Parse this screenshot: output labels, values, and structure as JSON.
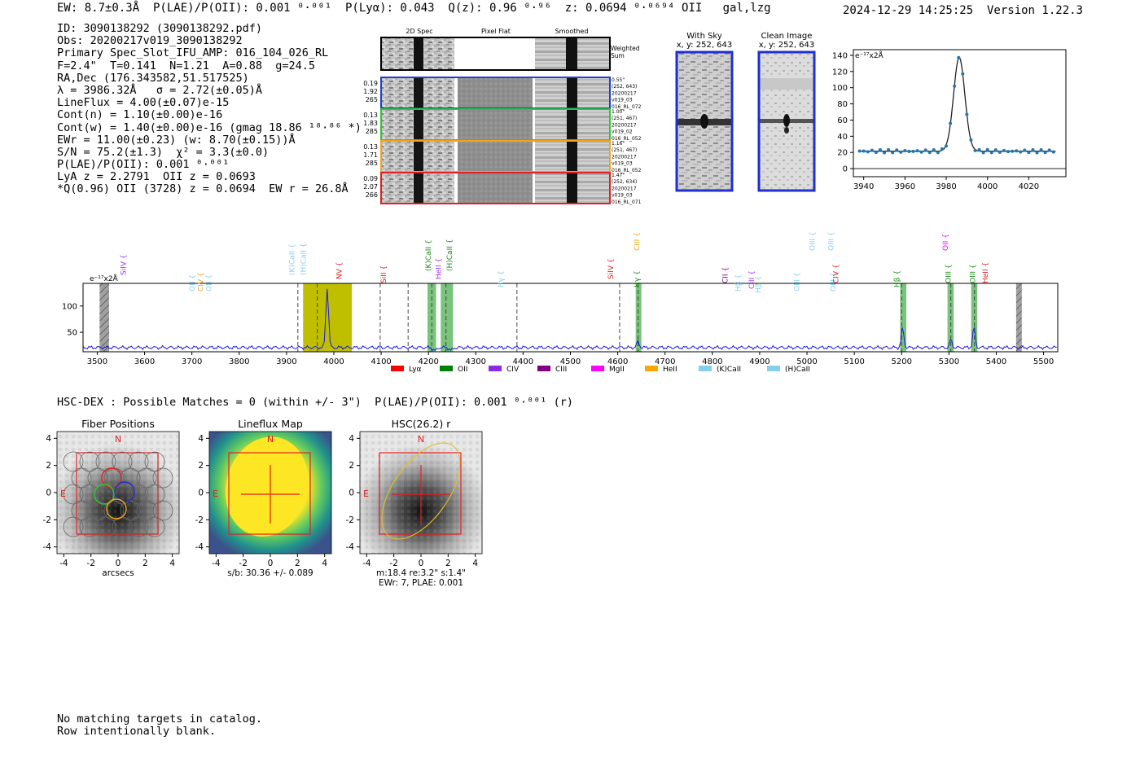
{
  "header": {
    "left": "EW: 8.7±0.3Å  P(LAE)/P(OII): 0.001 ⁰·⁰⁰¹  P(Lyα): 0.043  Q(z): 0.96 ⁰·⁹⁶  z: 0.0694 ⁰·⁰⁶⁹⁴ OII   gal,lzg",
    "right": "2024-12-29 14:25:25  Version 1.22.3"
  },
  "summary": [
    "ID: 3090138292 (3090138292.pdf)",
    "Obs: 20200217v019_3090138292",
    "Primary Spec_Slot_IFU_AMP: 016_104_026_RL",
    "F=2.4\"  T=0.141  N=1.21  A=0.88  g=24.5",
    "RA,Dec (176.343582,51.517525)",
    "λ = 3986.32Å   σ = 2.72(±0.05)Å",
    "LineFlux = 4.00(±0.07)e-15",
    "Cont(n) = 1.10(±0.00)e-16",
    "Cont(w) = 1.40(±0.00)e-16 (gmag 18.86 ¹⁸·⁸⁶ *)",
    "EWr = 11.00(±0.23) (w: 8.70(±0.15))Å",
    "S/N = 75.2(±1.3)  χ² = 3.3(±0.0)",
    "P(LAE)/P(OII): 0.001 ⁰·⁰⁰¹",
    "LyA z = 2.2791  OII z = 0.0693",
    "*Q(0.96) OII (3728) z = 0.0694  EW r = 26.8Å"
  ],
  "cutouts": {
    "col_headers": [
      "2D Spec",
      "Pixel Flat",
      "Smoothed"
    ],
    "weighted_label": [
      "Weighted",
      "Sum"
    ],
    "rows": [
      {
        "left": [
          "0.19",
          "1.92",
          "265"
        ],
        "right": [
          "0.55\"",
          "(252, 643)",
          "20200217",
          "v019_03",
          "016_RL_072"
        ],
        "color": "#1f3fd0"
      },
      {
        "left": [
          "0.13",
          "1.83",
          "285"
        ],
        "right": [
          "1.00\"",
          "(251, 467)",
          "20200217",
          "v019_02",
          "016_RL_052"
        ],
        "color": "#2ec82e"
      },
      {
        "left": [
          "0.13",
          "1.71",
          "285"
        ],
        "right": [
          "1.16\"",
          "(251, 467)",
          "20200217",
          "v019_03",
          "016_RL_052"
        ],
        "color": "#f2a51a"
      },
      {
        "left": [
          "0.09",
          "2.07",
          "266"
        ],
        "right": [
          "1.47\"",
          "(252, 634)",
          "20200217",
          "v019_03",
          "016_RL_071"
        ],
        "color": "#e02020"
      }
    ]
  },
  "sky_panels": [
    {
      "title": "With Sky",
      "coord": "x, y: 252, 643"
    },
    {
      "title": "Clean Image",
      "coord": "x, y: 252, 643"
    }
  ],
  "zoom_chart": {
    "unit_label": "e⁻¹⁷x2Å",
    "x_ticks": [
      "3940",
      "3960",
      "3980",
      "4000",
      "4020"
    ],
    "y_ticks": [
      "0",
      "20",
      "40",
      "60",
      "80",
      "100",
      "120",
      "140"
    ]
  },
  "full_spectrum": {
    "unit_label": "e⁻¹⁷x2Å",
    "x_ticks": [
      "3500",
      "3600",
      "3700",
      "3800",
      "3900",
      "4000",
      "4100",
      "4200",
      "4300",
      "4400",
      "4500",
      "4600",
      "4700",
      "4800",
      "4900",
      "5000",
      "5100",
      "5200",
      "5300",
      "5400",
      "5500"
    ],
    "y_ticks": [
      "50",
      "100"
    ],
    "line_labels": [
      {
        "text": "SiIV",
        "color": "#9b30ff"
      },
      {
        "text": "OII",
        "color": "#87ceeb"
      },
      {
        "text": "CIV",
        "color": "#f2a51a"
      },
      {
        "text": "OII",
        "color": "#87ceeb"
      },
      {
        "text": "(K)CaII",
        "color": "#87ceeb"
      },
      {
        "text": "(H)CaII",
        "color": "#87ceeb"
      },
      {
        "text": "NV",
        "color": "#e02020"
      },
      {
        "text": "SiII",
        "color": "#e02020"
      },
      {
        "text": "(K)CaII",
        "color": "#1a8a1a"
      },
      {
        "text": "HeII",
        "color": "#9b30ff"
      },
      {
        "text": "(H)CaII",
        "color": "#1a8a1a"
      },
      {
        "text": "Hγ",
        "color": "#87ceeb"
      },
      {
        "text": "SiIV",
        "color": "#e02020"
      },
      {
        "text": "CIII",
        "color": "#f2a51a"
      },
      {
        "text": "Hγ",
        "color": "#1a8a1a"
      },
      {
        "text": "CII",
        "color": "#800080"
      },
      {
        "text": "Hβ",
        "color": "#87ceeb"
      },
      {
        "text": "CIII",
        "color": "#9b30ff"
      },
      {
        "text": "Hβ",
        "color": "#87ceeb"
      },
      {
        "text": "OIII",
        "color": "#87ceeb"
      },
      {
        "text": "OIII",
        "color": "#87ceeb"
      },
      {
        "text": "OIII",
        "color": "#87ceeb"
      },
      {
        "text": "OIII",
        "color": "#87ceeb"
      },
      {
        "text": "CIV",
        "color": "#e02020"
      },
      {
        "text": "Hβ",
        "color": "#1a8a1a"
      },
      {
        "text": "OII",
        "color": "#ff00ff"
      },
      {
        "text": "OIII",
        "color": "#1a8a1a"
      },
      {
        "text": "OIII",
        "color": "#1a8a1a"
      },
      {
        "text": "HeII",
        "color": "#e02020"
      }
    ],
    "legend": [
      {
        "text": "Lyα",
        "color": "#ff0000"
      },
      {
        "text": "OII",
        "color": "#008000"
      },
      {
        "text": "CIV",
        "color": "#8a2be2"
      },
      {
        "text": "CIII",
        "color": "#800080"
      },
      {
        "text": "MgII",
        "color": "#ff00ff"
      },
      {
        "text": "HeII",
        "color": "#ffa500"
      },
      {
        "text": "(K)CaII",
        "color": "#87ceeb"
      },
      {
        "text": "(H)CaII",
        "color": "#87ceeb"
      }
    ]
  },
  "hsc_header": "HSC-DEX : Possible Matches = 0 (within +/- 3\")  P(LAE)/P(OII): 0.001 ⁰·⁰⁰¹ (r)",
  "bottom_panels": [
    {
      "title": "Fiber Positions",
      "xlabel": "arcsecs",
      "extra": ""
    },
    {
      "title": "Lineflux Map",
      "xlabel": "s/b: 30.36 +/- 0.089",
      "extra": ""
    },
    {
      "title": "HSC(26.2) r",
      "xlabel": "m:18.4  re:3.2\"  s:1.4\"",
      "extra": "EWr: 7, PLAE: 0.001"
    }
  ],
  "panel_ticks": [
    "-4",
    "-2",
    "0",
    "2",
    "4"
  ],
  "compass": {
    "north": "N",
    "east": "E"
  },
  "footer": [
    "No matching targets in catalog.",
    "Row intentionally blank."
  ]
}
